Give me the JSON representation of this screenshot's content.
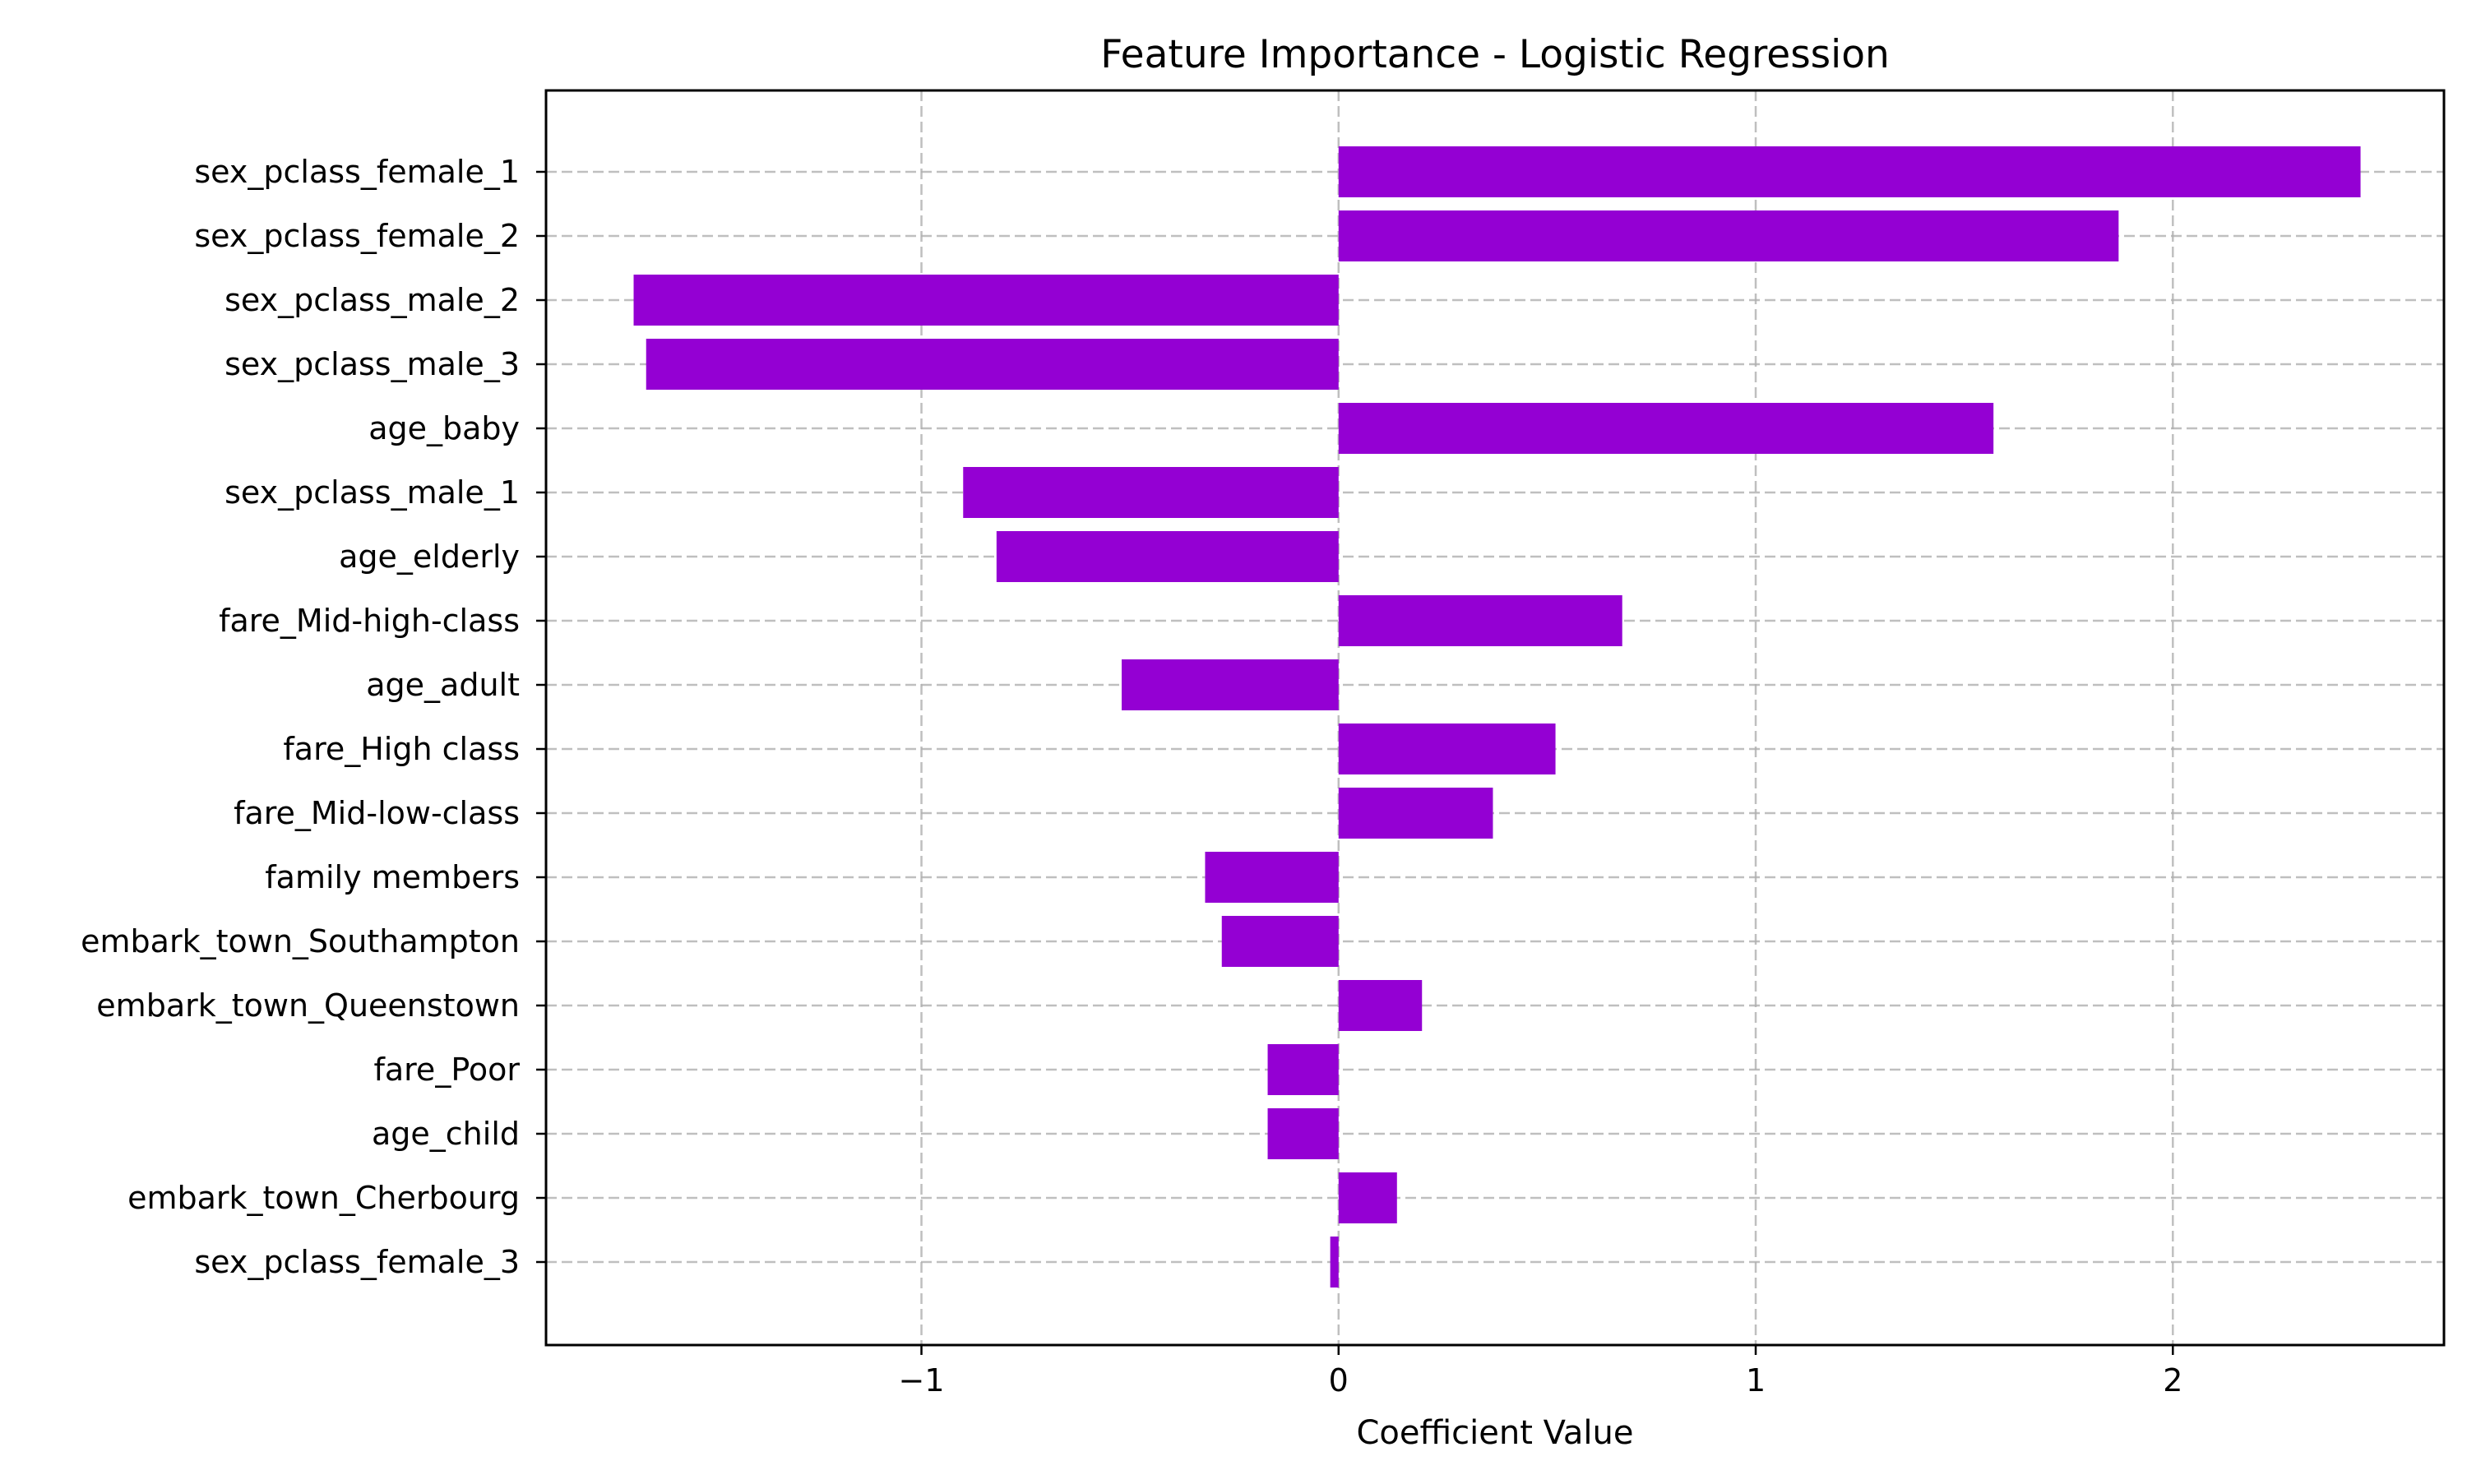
{
  "chart_data": {
    "type": "bar",
    "orientation": "horizontal",
    "title": "Feature Importance - Logistic Regression",
    "xlabel": "Coefficient Value",
    "ylabel": "",
    "categories": [
      "sex_pclass_female_1",
      "sex_pclass_female_2",
      "sex_pclass_male_2",
      "sex_pclass_male_3",
      "age_baby",
      "sex_pclass_male_1",
      "age_elderly",
      "fare_Mid-high-class",
      "age_adult",
      "fare_High class",
      "fare_Mid-low-class",
      "family members",
      "embark_town_Southampton",
      "embark_town_Queenstown",
      "fare_Poor",
      "age_child",
      "embark_town_Cherbourg",
      "sex_pclass_female_3"
    ],
    "values": [
      2.45,
      1.87,
      -1.69,
      -1.66,
      1.57,
      -0.9,
      -0.82,
      0.68,
      -0.52,
      0.52,
      0.37,
      -0.32,
      -0.28,
      0.2,
      -0.17,
      -0.17,
      0.14,
      -0.02
    ],
    "xticks": [
      -1,
      0,
      1,
      2
    ],
    "xtick_labels": [
      "−1",
      "0",
      "1",
      "2"
    ],
    "xlim": [
      -1.9,
      2.65
    ],
    "grid": true,
    "legend": "none",
    "bar_color": "#9400D3"
  }
}
